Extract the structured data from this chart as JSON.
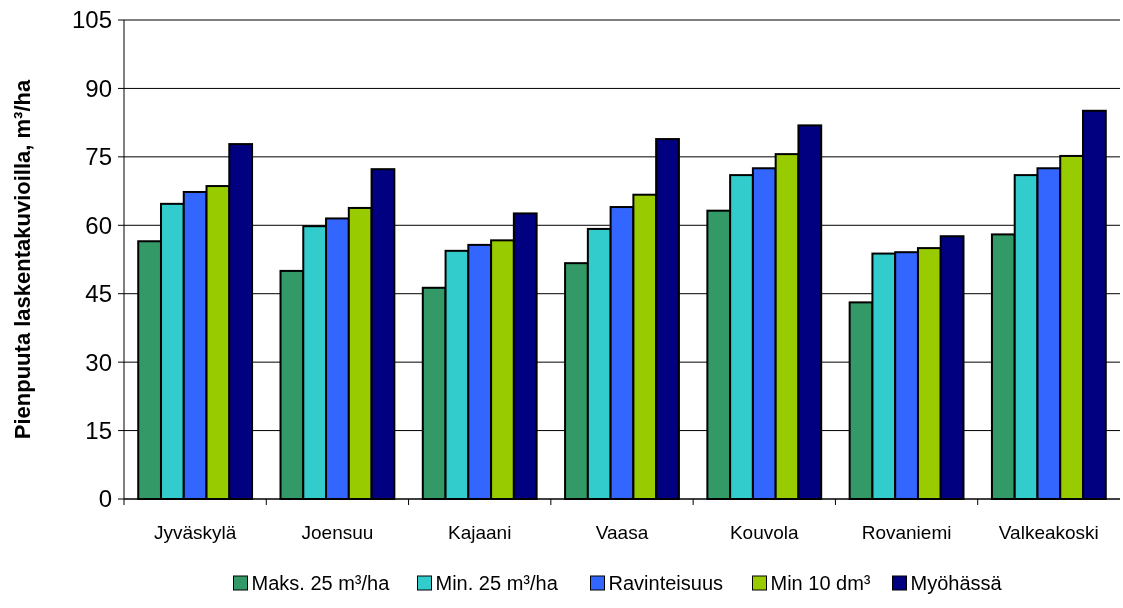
{
  "chart_data": {
    "type": "bar",
    "ylabel": "Pienpuuta laskentakuvioilla, m³/ha",
    "categories": [
      "Jyväskylä",
      "Joensuu",
      "Kajaani",
      "Vaasa",
      "Kouvola",
      "Rovaniemi",
      "Valkeakoski"
    ],
    "series": [
      {
        "name": "Maks. 25 m³/ha",
        "color": "#339966",
        "values": [
          56.5,
          50,
          46.3,
          51.7,
          63.2,
          43.1,
          58
        ]
      },
      {
        "name": "Min. 25 m³/ha",
        "color": "#33cccc",
        "values": [
          64.7,
          59.8,
          54.4,
          59.2,
          71,
          53.8,
          71
        ]
      },
      {
        "name": "Ravinteisuus",
        "color": "#3366ff",
        "values": [
          67.3,
          61.5,
          55.7,
          64,
          72.5,
          54.1,
          72.5
        ]
      },
      {
        "name": "Min 10 dm³",
        "color": "#99cc00",
        "values": [
          68.6,
          63.8,
          56.7,
          66.7,
          75.6,
          55,
          75.2
        ]
      },
      {
        "name": "Myöhässä",
        "color": "#000080",
        "values": [
          77.8,
          72.3,
          62.6,
          78.9,
          81.9,
          57.6,
          85.1
        ]
      }
    ],
    "ylim": [
      0,
      105
    ],
    "yticks": [
      0,
      15,
      30,
      45,
      60,
      75,
      90,
      105
    ],
    "grid": "y",
    "legend": "bottom"
  }
}
